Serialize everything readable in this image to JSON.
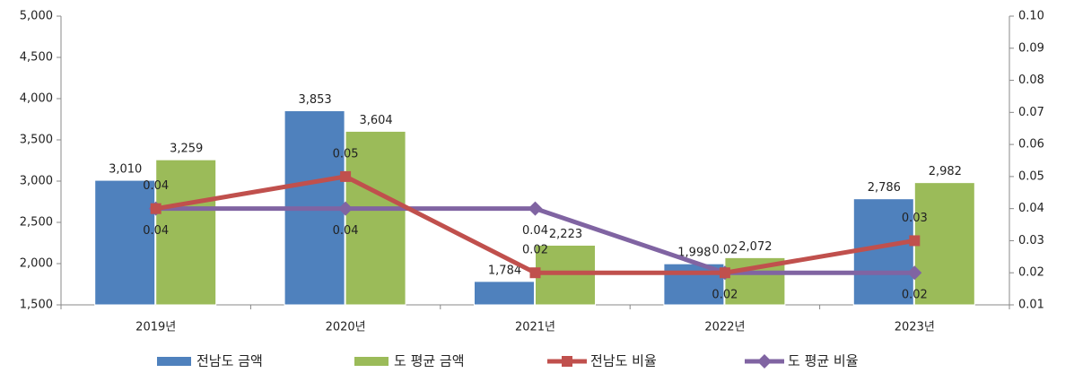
{
  "chart_data": {
    "type": "bar_line",
    "categories": [
      "2019년",
      "2020년",
      "2021년",
      "2022년",
      "2023년"
    ],
    "series": [
      {
        "name": "전남도 금액",
        "type": "bar",
        "color": "#4f81bd",
        "values": [
          3010,
          3853,
          1784,
          1998,
          2786
        ],
        "value_labels": [
          "3,010",
          "3,853",
          "1,784",
          "1,998",
          "2,786"
        ]
      },
      {
        "name": "도 평균 금액",
        "type": "bar",
        "color": "#9bbb59",
        "values": [
          3259,
          3604,
          2223,
          2072,
          2982
        ],
        "value_labels": [
          "3,259",
          "3,604",
          "2,223",
          "2,072",
          "2,982"
        ]
      },
      {
        "name": "전남도 비율",
        "type": "line",
        "axis": "y2",
        "color": "#c0504d",
        "marker": "square",
        "values": [
          0.04,
          0.05,
          0.02,
          0.02,
          0.03
        ]
      },
      {
        "name": "도 평균 비율",
        "type": "line",
        "axis": "y2",
        "color": "#8064a2",
        "marker": "diamond",
        "values": [
          0.04,
          0.04,
          0.04,
          0.02,
          0.02
        ]
      }
    ],
    "ylim": [
      1500,
      5000
    ],
    "yticks": [
      {
        "value": 1500,
        "label": "1,500"
      },
      {
        "value": 2000,
        "label": "2,000"
      },
      {
        "value": 2500,
        "label": "2,500"
      },
      {
        "value": 3000,
        "label": "3,000"
      },
      {
        "value": 3500,
        "label": "3,500"
      },
      {
        "value": 4000,
        "label": "4,000"
      },
      {
        "value": 4500,
        "label": "4,500"
      },
      {
        "value": 5000,
        "label": "5,000"
      }
    ],
    "y2lim": [
      0.01,
      0.1
    ],
    "y2ticks": [
      0.01,
      0.02,
      0.03,
      0.04,
      0.05,
      0.06,
      0.07,
      0.08,
      0.09,
      {
        "value": 0.1,
        "label": "0.10"
      }
    ],
    "legend": "bottom",
    "grid": false
  }
}
